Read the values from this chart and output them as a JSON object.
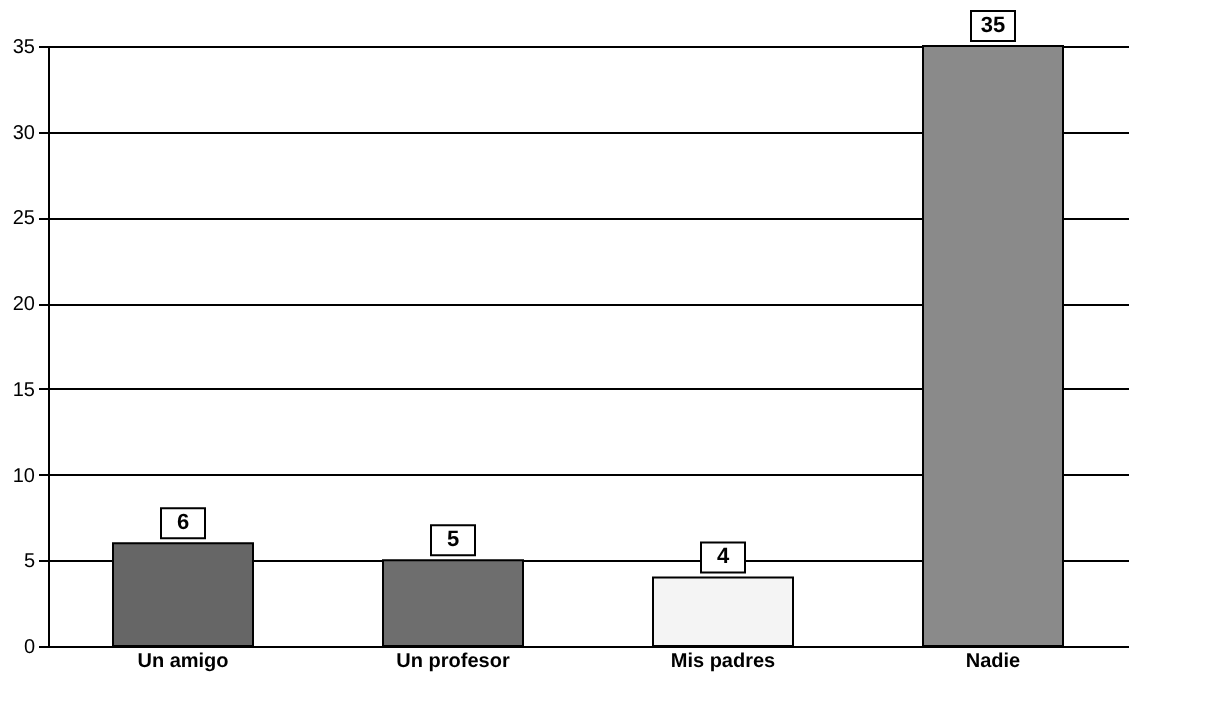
{
  "chart_data": {
    "type": "bar",
    "categories": [
      "Un amigo",
      "Un profesor",
      "Mis padres",
      "Nadie"
    ],
    "values": [
      6,
      5,
      4,
      35
    ],
    "colors": [
      "#666666",
      "#6e6e6e",
      "#f4f4f4",
      "#8a8a8a"
    ],
    "ylim": [
      0,
      35
    ],
    "yticks": [
      0,
      5,
      10,
      15,
      20,
      25,
      30,
      35
    ],
    "grid": "y",
    "data_labels": true
  }
}
